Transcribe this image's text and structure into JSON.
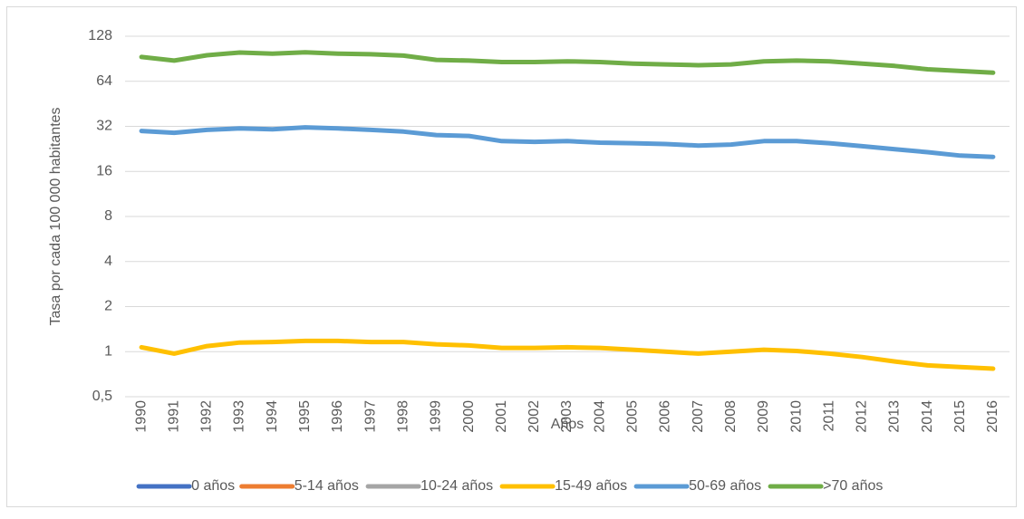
{
  "chart_data": {
    "type": "line",
    "y_scale": "log",
    "grid": true,
    "legend": "bottom",
    "x_label": "Años",
    "y_label": "Tasa por cada 100 000 habitantes",
    "categories": [
      "1990",
      "1991",
      "1992",
      "1993",
      "1994",
      "1995",
      "1996",
      "1997",
      "1998",
      "1999",
      "2000",
      "2001",
      "2002",
      "2003",
      "2004",
      "2005",
      "2006",
      "2007",
      "2008",
      "2009",
      "2010",
      "2011",
      "2012",
      "2013",
      "2014",
      "2015",
      "2016"
    ],
    "ylim": [
      0.5,
      128
    ],
    "yticks": [
      {
        "value": 0.5,
        "label": "0,5"
      },
      1,
      2,
      4,
      8,
      16,
      32,
      64,
      128
    ],
    "series": [
      {
        "name": "0 años",
        "color": "#4472c4",
        "values": [
          null,
          null,
          null,
          null,
          null,
          null,
          null,
          null,
          null,
          null,
          null,
          null,
          null,
          null,
          null,
          null,
          null,
          null,
          null,
          null,
          null,
          null,
          null,
          null,
          null,
          null,
          null
        ]
      },
      {
        "name": "5-14 años",
        "color": "#ed7d31",
        "values": [
          null,
          null,
          null,
          null,
          null,
          null,
          null,
          null,
          null,
          null,
          null,
          null,
          null,
          null,
          null,
          null,
          null,
          null,
          null,
          null,
          null,
          null,
          null,
          null,
          null,
          null,
          null
        ]
      },
      {
        "name": "10-24 años",
        "color": "#a5a5a5",
        "values": [
          null,
          null,
          null,
          null,
          null,
          null,
          null,
          null,
          null,
          null,
          null,
          null,
          null,
          null,
          null,
          null,
          null,
          null,
          null,
          null,
          null,
          null,
          null,
          null,
          null,
          null,
          null
        ]
      },
      {
        "name": "15-49 años",
        "color": "#ffc000",
        "values": [
          1.07,
          0.97,
          1.09,
          1.15,
          1.16,
          1.18,
          1.18,
          1.16,
          1.16,
          1.12,
          1.1,
          1.06,
          1.06,
          1.07,
          1.06,
          1.03,
          1,
          0.97,
          1,
          1.03,
          1.01,
          0.97,
          0.92,
          0.86,
          0.81,
          0.79,
          0.77
        ]
      },
      {
        "name": "50-69 años",
        "color": "#5b9bd5",
        "values": [
          29.8,
          29,
          30.3,
          31,
          30.6,
          31.5,
          31,
          30.3,
          29.5,
          28,
          27.6,
          25.5,
          25.2,
          25.5,
          24.9,
          24.7,
          24.4,
          23.8,
          24.2,
          25.5,
          25.5,
          24.7,
          23.6,
          22.5,
          21.5,
          20.4,
          20
        ]
      },
      {
        "name": ">70 años",
        "color": "#70ad47",
        "values": [
          93,
          88,
          95.5,
          99.6,
          98,
          100,
          98,
          97,
          95,
          89,
          88,
          86,
          86,
          87,
          86,
          84,
          83,
          82,
          83,
          87,
          88,
          87,
          84,
          81,
          77,
          75,
          73
        ]
      }
    ]
  }
}
